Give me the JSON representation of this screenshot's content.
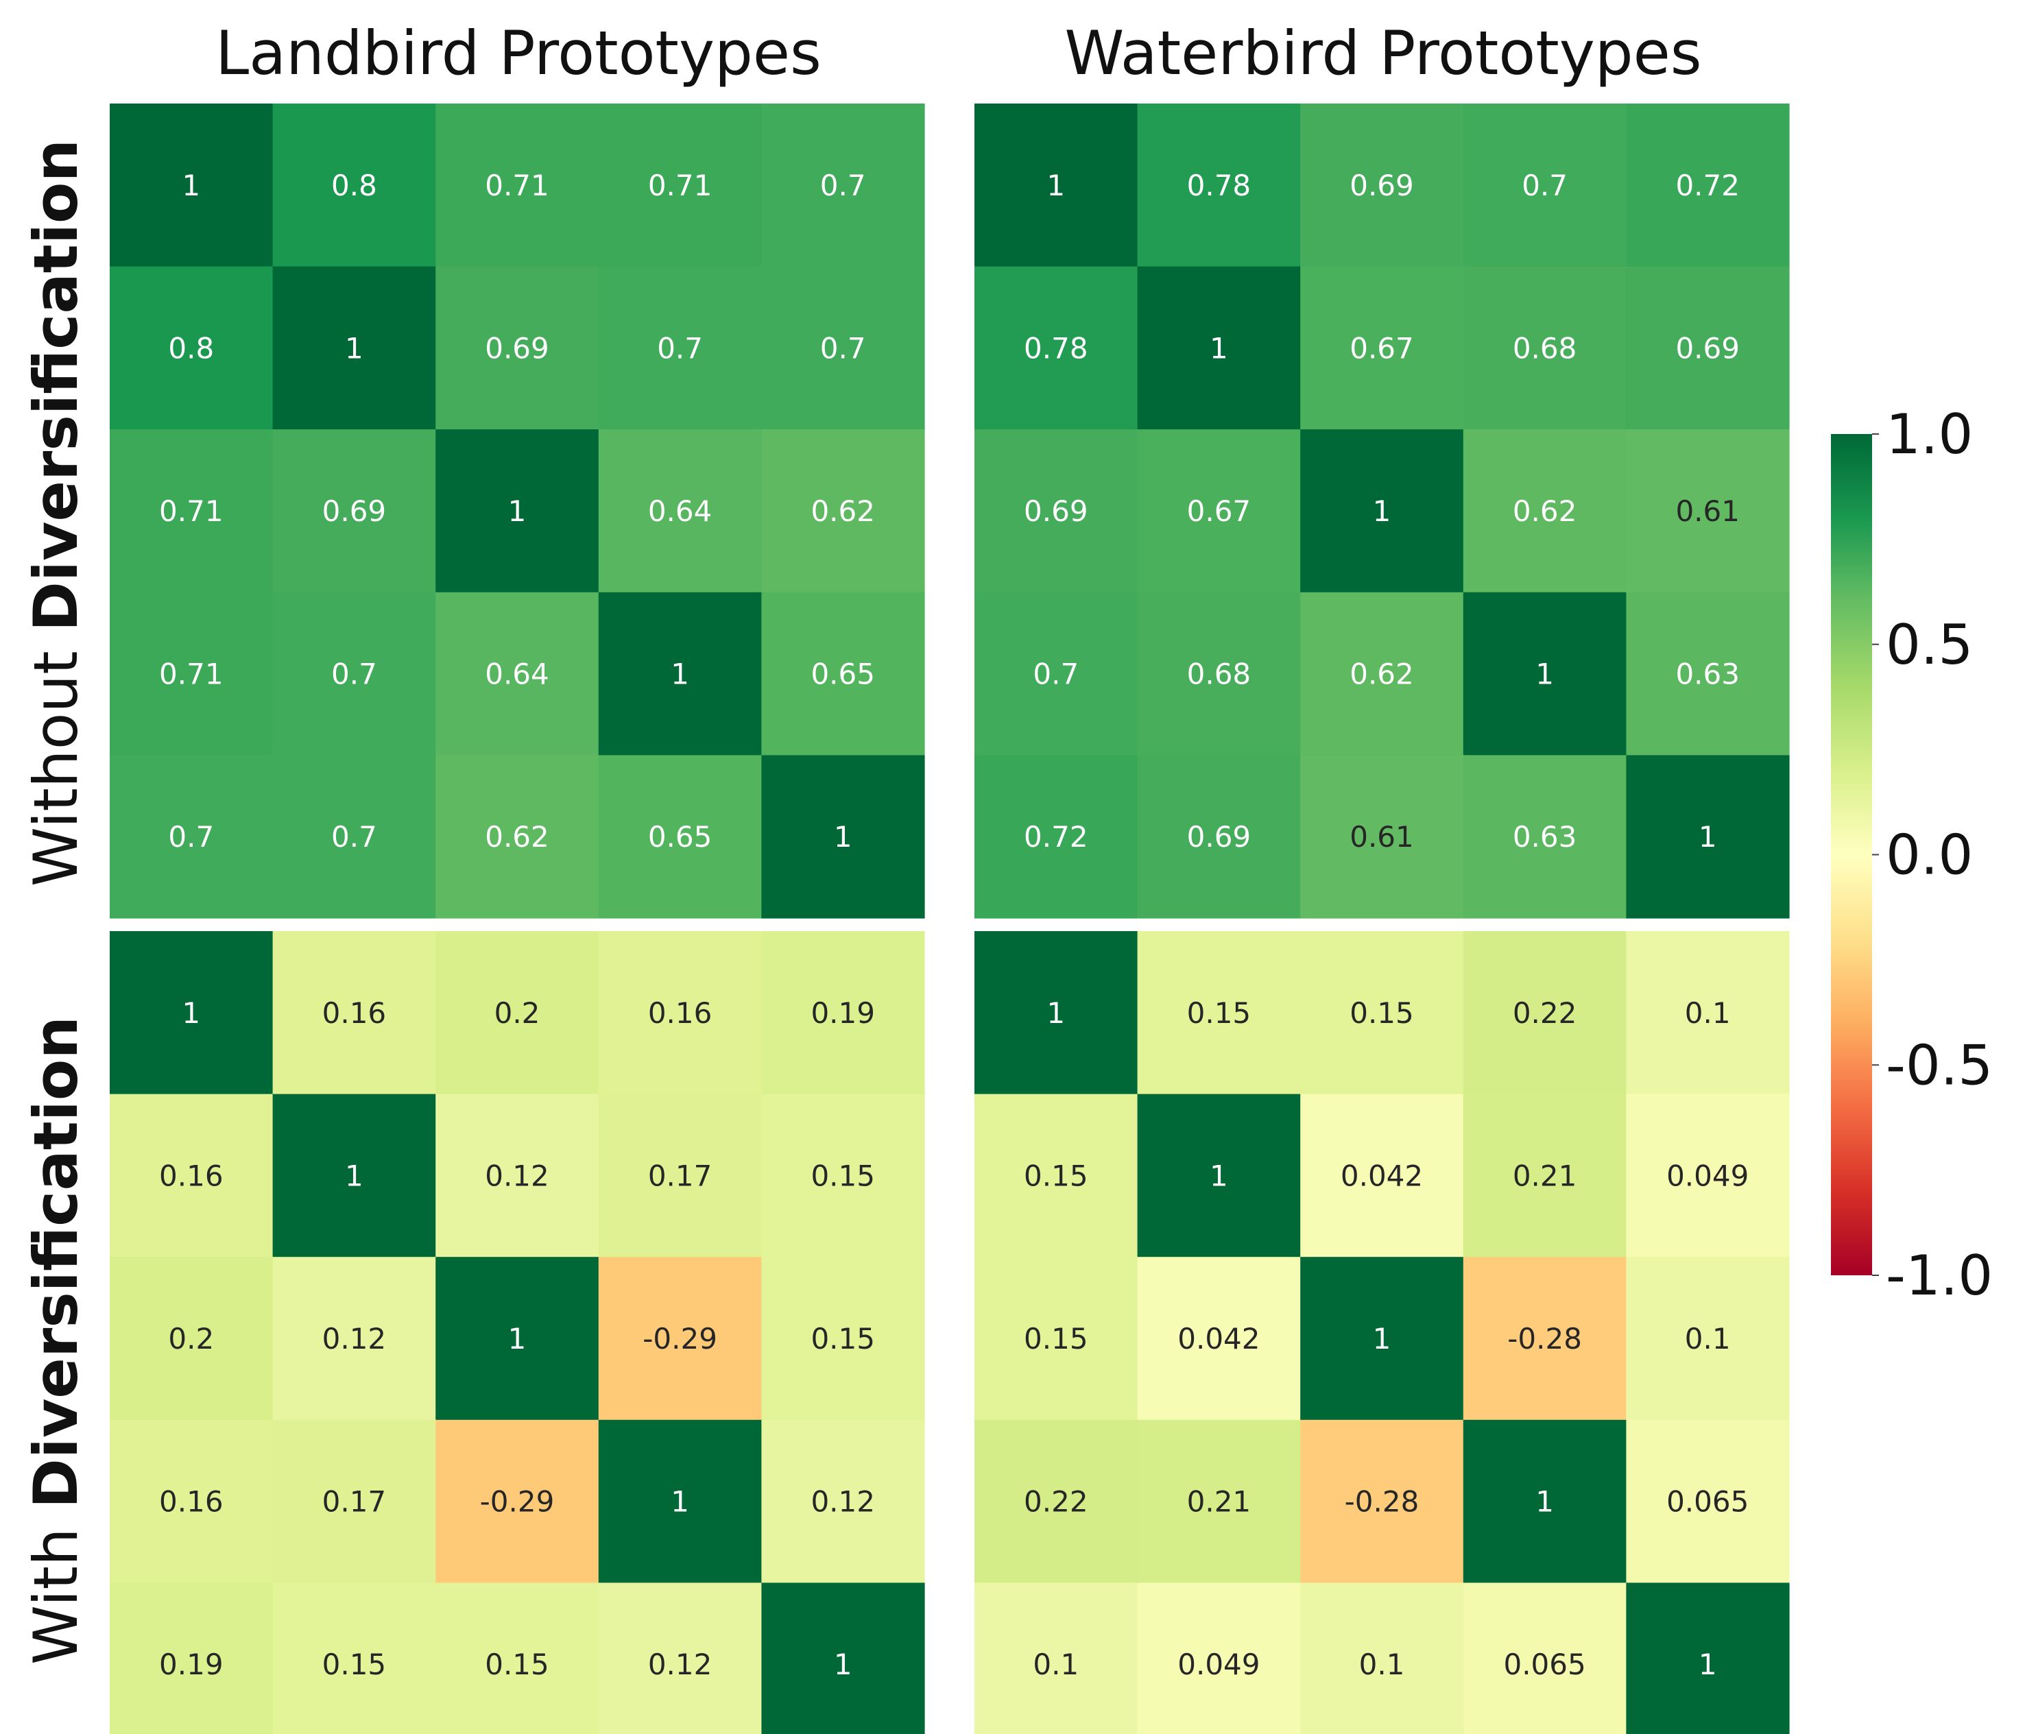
{
  "column_titles": [
    "Landbird Prototypes",
    "Waterbird Prototypes"
  ],
  "row_titles": [
    {
      "prefix": "Without ",
      "bold": "Diversification"
    },
    {
      "prefix": "With ",
      "bold": "Diversification"
    }
  ],
  "colorbar": {
    "min": -1.0,
    "max": 1.0,
    "ticks": [
      "1.0",
      "0.5",
      "0.0",
      "-0.5",
      "-1.0"
    ],
    "tick_values": [
      1.0,
      0.5,
      0.0,
      -0.5,
      -1.0
    ],
    "colormap": "RdYlGn",
    "stops": [
      "#a50026",
      "#d73027",
      "#f46d43",
      "#fdae61",
      "#fee08b",
      "#ffffbf",
      "#d9ef8b",
      "#a6d96a",
      "#66bd63",
      "#1a9850",
      "#006837"
    ]
  },
  "chart_data": [
    {
      "type": "heatmap",
      "title": "Landbird Prototypes",
      "row_label": "Without Diversification",
      "matrix": [
        [
          1,
          0.8,
          0.71,
          0.71,
          0.7
        ],
        [
          0.8,
          1,
          0.69,
          0.7,
          0.7
        ],
        [
          0.71,
          0.69,
          1,
          0.64,
          0.62
        ],
        [
          0.71,
          0.7,
          0.64,
          1,
          0.65
        ],
        [
          0.7,
          0.7,
          0.62,
          0.65,
          1
        ]
      ]
    },
    {
      "type": "heatmap",
      "title": "Waterbird Prototypes",
      "row_label": "Without Diversification",
      "matrix": [
        [
          1,
          0.78,
          0.69,
          0.7,
          0.72
        ],
        [
          0.78,
          1,
          0.67,
          0.68,
          0.69
        ],
        [
          0.69,
          0.67,
          1,
          0.62,
          0.61
        ],
        [
          0.7,
          0.68,
          0.62,
          1,
          0.63
        ],
        [
          0.72,
          0.69,
          0.61,
          0.63,
          1
        ]
      ]
    },
    {
      "type": "heatmap",
      "title": "Landbird Prototypes",
      "row_label": "With Diversification",
      "matrix": [
        [
          1,
          0.16,
          0.2,
          0.16,
          0.19
        ],
        [
          0.16,
          1,
          0.12,
          0.17,
          0.15
        ],
        [
          0.2,
          0.12,
          1,
          -0.29,
          0.15
        ],
        [
          0.16,
          0.17,
          -0.29,
          1,
          0.12
        ],
        [
          0.19,
          0.15,
          0.15,
          0.12,
          1
        ]
      ]
    },
    {
      "type": "heatmap",
      "title": "Waterbird Prototypes",
      "row_label": "With Diversification",
      "matrix": [
        [
          1,
          0.15,
          0.15,
          0.22,
          0.1
        ],
        [
          0.15,
          1,
          0.042,
          0.21,
          0.049
        ],
        [
          0.15,
          0.042,
          1,
          -0.28,
          0.1
        ],
        [
          0.22,
          0.21,
          -0.28,
          1,
          0.065
        ],
        [
          0.1,
          0.049,
          0.1,
          0.065,
          1
        ]
      ]
    }
  ]
}
